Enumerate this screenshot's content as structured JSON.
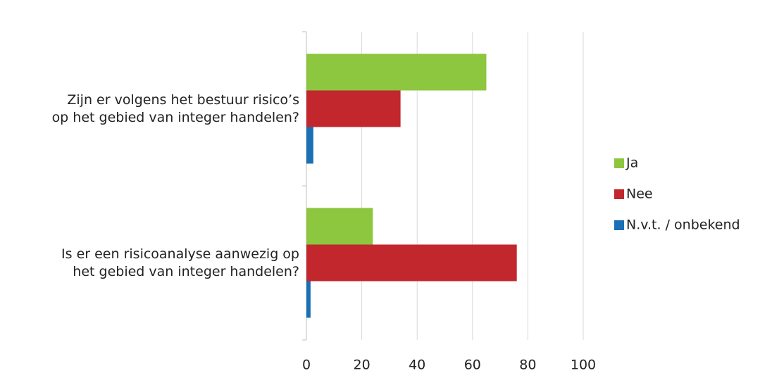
{
  "chart_data": {
    "type": "hbar",
    "categories": [
      "Zijn er volgens het bestuur risico’s op het gebied van integer handelen?",
      "Is er een risicoanalyse aanwezig op het gebied van integer handelen?"
    ],
    "series": [
      {
        "name": "Ja",
        "color": "#8dc63f",
        "values": [
          65,
          24
        ]
      },
      {
        "name": "Nee",
        "color": "#c1272d",
        "values": [
          34,
          76
        ]
      },
      {
        "name": "N.v.t. / onbekend",
        "color": "#1a6fb5",
        "values": [
          2.5,
          1.5
        ]
      }
    ],
    "xlim": [
      0,
      100
    ],
    "xticks": [
      0,
      20,
      40,
      60,
      80,
      100
    ],
    "grid": true,
    "legend": "right"
  }
}
